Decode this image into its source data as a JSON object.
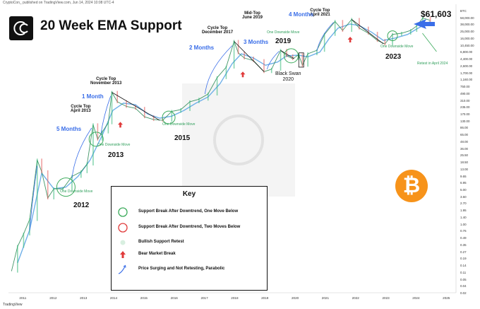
{
  "header": {
    "meta": "CryptoCon_ published on TradingView.com, Jun 14, 2024 10:08 UTC-4",
    "title": "20 Week EMA Support",
    "price": "$61,603",
    "tradingview": "TradingView"
  },
  "colors": {
    "price_candle_up": "#2bb673",
    "price_candle_down": "#e25656",
    "ema_line": "#6fb0e8",
    "accent_blue": "#3a6ee8",
    "support_green": "#3aaa5a",
    "bear_red": "#e03a3a",
    "btc_orange": "#f7931a"
  },
  "icons": {
    "logo": "cryptocon-logo-icon",
    "bitcoin": "bitcoin-icon",
    "arrow": "arrow-left-icon"
  },
  "chart_data": {
    "type": "line",
    "title": "20 Week EMA Support",
    "y_scale": "log",
    "y_unit": "USD",
    "y_ticks": [
      "0.02",
      "0.04",
      "0.05",
      "0.11",
      "0.14",
      "0.19",
      "0.27",
      "0.35",
      "0.49",
      "0.76",
      "1.00",
      "1.40",
      "1.95",
      "2.70",
      "3.60",
      "5.00",
      "6.95",
      "9.65",
      "13.00",
      "18.50",
      "25.50",
      "36.00",
      "48.00",
      "65.00",
      "86.00",
      "130.00",
      "170.00",
      "235.00",
      "310.00",
      "490.00",
      "750.00",
      "1,160.00",
      "1,700.00",
      "2,600.00",
      "4,400.00",
      "6,800.00",
      "10,450.00",
      "16,000.00",
      "25,000.00",
      "38,000.00",
      "58,000.00",
      "BTC"
    ],
    "x_ticks": [
      "2011",
      "2012",
      "2013",
      "2014",
      "2015",
      "2016",
      "2017",
      "2018",
      "2019",
      "2020",
      "2021",
      "2022",
      "2023",
      "2024",
      "2025"
    ],
    "series": [
      {
        "name": "BTC",
        "x": [
          2010.6,
          2010.8,
          2011.0,
          2011.2,
          2011.45,
          2011.6,
          2011.8,
          2012.0,
          2012.3,
          2012.6,
          2012.9,
          2013.1,
          2013.3,
          2013.45,
          2013.6,
          2013.8,
          2013.92,
          2014.1,
          2014.4,
          2014.7,
          2015.0,
          2015.3,
          2015.6,
          2015.9,
          2016.2,
          2016.5,
          2016.8,
          2017.1,
          2017.4,
          2017.7,
          2017.96,
          2018.1,
          2018.3,
          2018.6,
          2018.95,
          2019.2,
          2019.5,
          2019.7,
          2019.9,
          2020.1,
          2020.22,
          2020.4,
          2020.7,
          2020.95,
          2021.3,
          2021.55,
          2021.85,
          2022.1,
          2022.4,
          2022.7,
          2022.95,
          2023.2,
          2023.5,
          2023.8,
          2024.0,
          2024.2,
          2024.45
        ],
        "y": [
          0.05,
          0.2,
          0.4,
          0.9,
          25,
          13,
          3,
          5,
          5,
          10,
          13,
          20,
          180,
          80,
          120,
          200,
          1100,
          650,
          500,
          450,
          280,
          240,
          230,
          380,
          420,
          650,
          750,
          1000,
          2500,
          4500,
          19000,
          10000,
          7500,
          6500,
          3500,
          4000,
          11500,
          8500,
          7200,
          9000,
          5000,
          9500,
          11500,
          28000,
          58000,
          35000,
          65000,
          40000,
          30000,
          20000,
          16500,
          28000,
          30000,
          35000,
          45000,
          70000,
          61603
        ]
      },
      {
        "name": "20 Week EMA",
        "x": [
          2010.8,
          2011.2,
          2011.6,
          2012.0,
          2012.4,
          2012.8,
          2013.2,
          2013.6,
          2013.95,
          2014.3,
          2014.7,
          2015.1,
          2015.5,
          2015.9,
          2016.3,
          2016.7,
          2017.1,
          2017.5,
          2017.9,
          2018.2,
          2018.6,
          2019.0,
          2019.4,
          2019.7,
          2020.1,
          2020.4,
          2020.8,
          2021.1,
          2021.4,
          2021.8,
          2022.1,
          2022.5,
          2022.9,
          2023.3,
          2023.7,
          2024.0,
          2024.45
        ],
        "y": [
          0.08,
          0.5,
          12,
          5,
          5.5,
          10,
          25,
          100,
          400,
          600,
          550,
          330,
          260,
          290,
          400,
          600,
          850,
          1800,
          5500,
          9500,
          7500,
          5000,
          6000,
          8500,
          8800,
          8000,
          10500,
          22000,
          40000,
          50000,
          46000,
          32000,
          20000,
          23000,
          28000,
          38000,
          58000
        ]
      }
    ],
    "annotations": {
      "cycle_tops": [
        {
          "label": "Cycle Top",
          "date": "April 2013"
        },
        {
          "label": "Cycle Top",
          "date": "November 2013"
        },
        {
          "label": "Cycle Top",
          "date": "December 2017"
        },
        {
          "label": "Mid-Top",
          "date": "June 2019"
        },
        {
          "label": "Cycle Top",
          "date": "April 2021"
        }
      ],
      "durations": [
        "5 Months",
        "1 Month",
        "2 Months",
        "3 Months",
        "4 Months"
      ],
      "moves": [
        "One Downside Move",
        "One Downside Move",
        "One Downside Move",
        "One Downside Move",
        "One Downside Move"
      ],
      "years": [
        "2012",
        "2013",
        "2015",
        "2019",
        "2023"
      ],
      "black_swan": [
        "Black Swan",
        "2020"
      ],
      "retest": "Retest in April 2024"
    }
  },
  "key": {
    "title": "Key",
    "items": [
      {
        "label": "Support Break After Downtrend, One Move Below"
      },
      {
        "label": "Support Break After Downtrend, Two Moves Below"
      },
      {
        "label": "Bullish Support Retest"
      },
      {
        "label": "Bear Market Break"
      },
      {
        "label": "Price Surging and Not Retesting, Parabolic"
      }
    ]
  }
}
